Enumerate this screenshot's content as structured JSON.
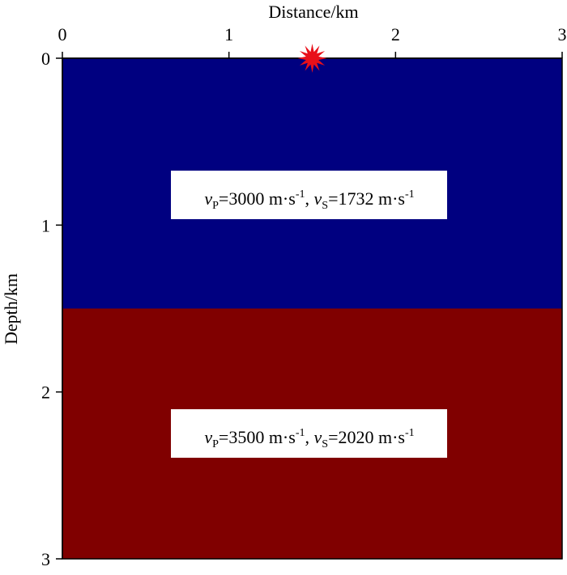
{
  "axes": {
    "x_title": "Distance/km",
    "y_title": "Depth/km",
    "x_ticks": [
      "0",
      "1",
      "2",
      "3"
    ],
    "y_ticks": [
      "0",
      "1",
      "2",
      "3"
    ],
    "x_range": [
      0,
      3
    ],
    "y_range": [
      0,
      3
    ]
  },
  "source": {
    "x_km": 1.5,
    "depth_km": 0,
    "color": "#e8101a",
    "icon": "star-burst-icon"
  },
  "layers": [
    {
      "top_km": 0,
      "bottom_km": 1.5,
      "color": "#000080",
      "label": {
        "vp_sym": "v",
        "vp_sub": "P",
        "vp_val": "=3000 m·s",
        "vp_exp": "-1",
        "sep": ", ",
        "vs_sym": "v",
        "vs_sub": "S",
        "vs_val": "=1732 m·s",
        "vs_exp": "-1"
      }
    },
    {
      "top_km": 1.5,
      "bottom_km": 3,
      "color": "#800000",
      "label": {
        "vp_sym": "v",
        "vp_sub": "P",
        "vp_val": "=3500 m·s",
        "vp_exp": "-1",
        "sep": ", ",
        "vs_sym": "v",
        "vs_sub": "S",
        "vs_val": "=2020 m·s",
        "vs_exp": "-1"
      }
    }
  ]
}
